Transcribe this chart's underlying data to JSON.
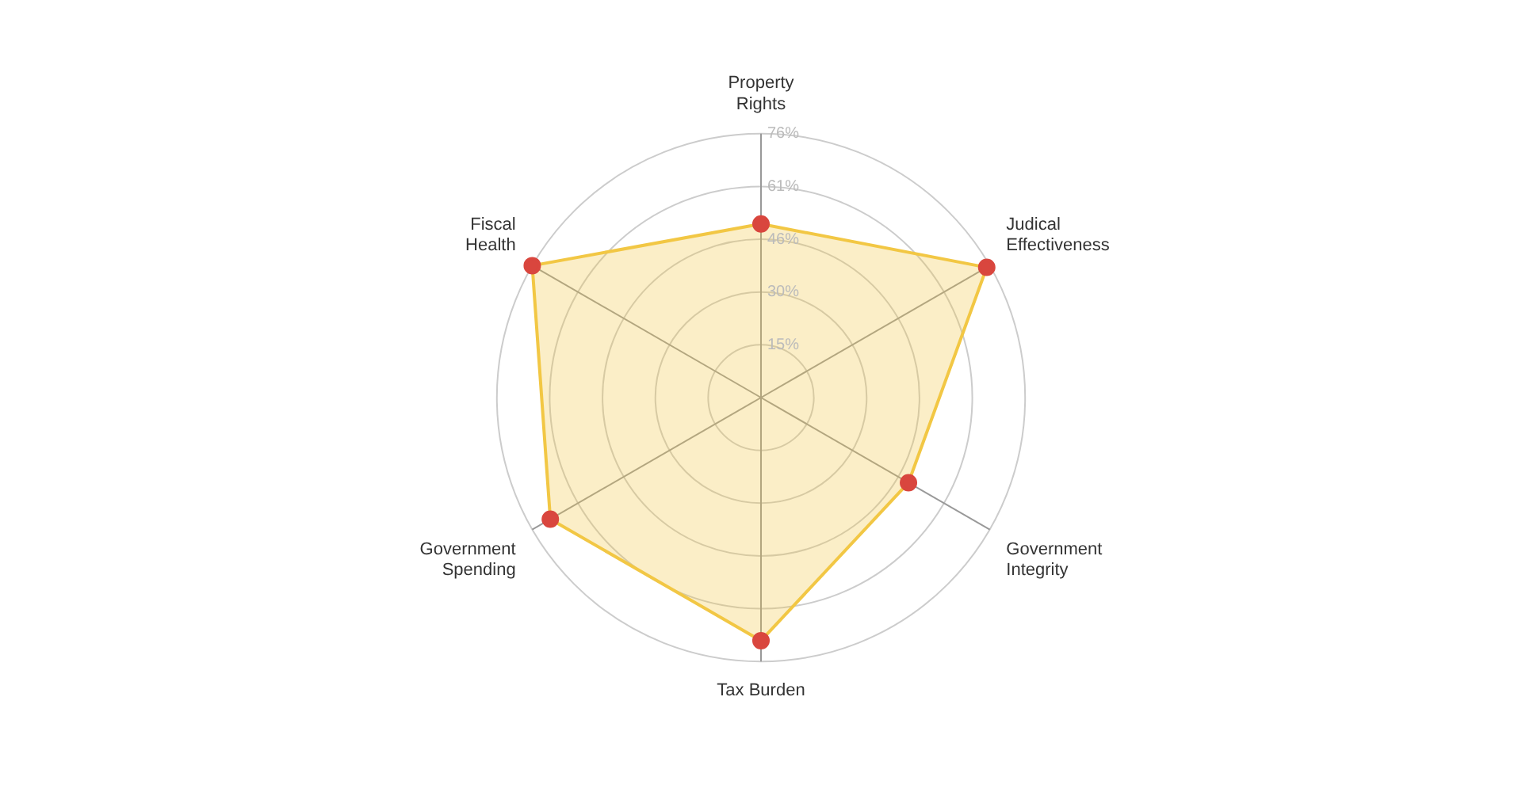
{
  "chart_data": {
    "type": "radar",
    "categories": [
      "Property Rights",
      "Judical Effectiveness",
      "Government Integrity",
      "Tax Burden",
      "Government Spending",
      "Fiscal Health"
    ],
    "series": [
      {
        "color": "#f2c744",
        "values": [
          50,
          75,
          49,
          70,
          70,
          76
        ]
      }
    ],
    "ylim": [
      0,
      76
    ],
    "yticks": [
      {
        "value": 15.2,
        "label": "15%"
      },
      {
        "value": 30.4,
        "label": "30%"
      },
      {
        "value": 45.6,
        "label": "46%"
      },
      {
        "value": 60.8,
        "label": "61%"
      },
      {
        "value": 76,
        "label": "76%"
      }
    ],
    "grid": true,
    "legend": false,
    "marker": "circle"
  }
}
